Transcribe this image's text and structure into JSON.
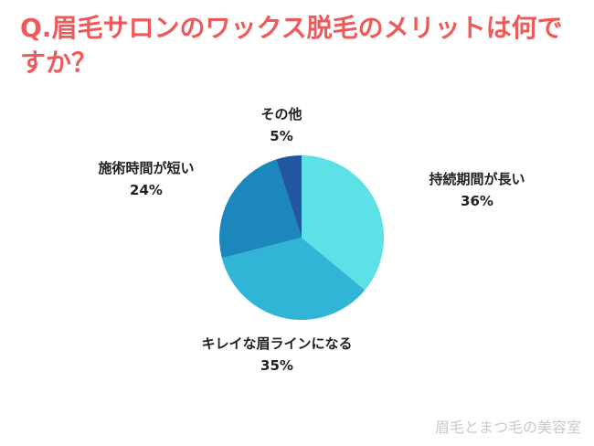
{
  "title": "Q.眉毛サロンのワックス脱毛のメリットは何ですか？",
  "watermark": "眉毛とまつ毛の美容室",
  "chart_data": {
    "type": "pie",
    "title": "Q.眉毛サロンのワックス脱毛のメリットは何ですか？",
    "slices": [
      {
        "label": "持続期間が長い",
        "value": 36,
        "value_text": "36%",
        "color": "#5ce1e6"
      },
      {
        "label": "キレイな眉ラインになる",
        "value": 35,
        "value_text": "35%",
        "color": "#31b5d6"
      },
      {
        "label": "施術時間が短い",
        "value": 24,
        "value_text": "24%",
        "color": "#1c87bd"
      },
      {
        "label": "その他",
        "value": 5,
        "value_text": "5%",
        "color": "#2057a0"
      }
    ]
  }
}
